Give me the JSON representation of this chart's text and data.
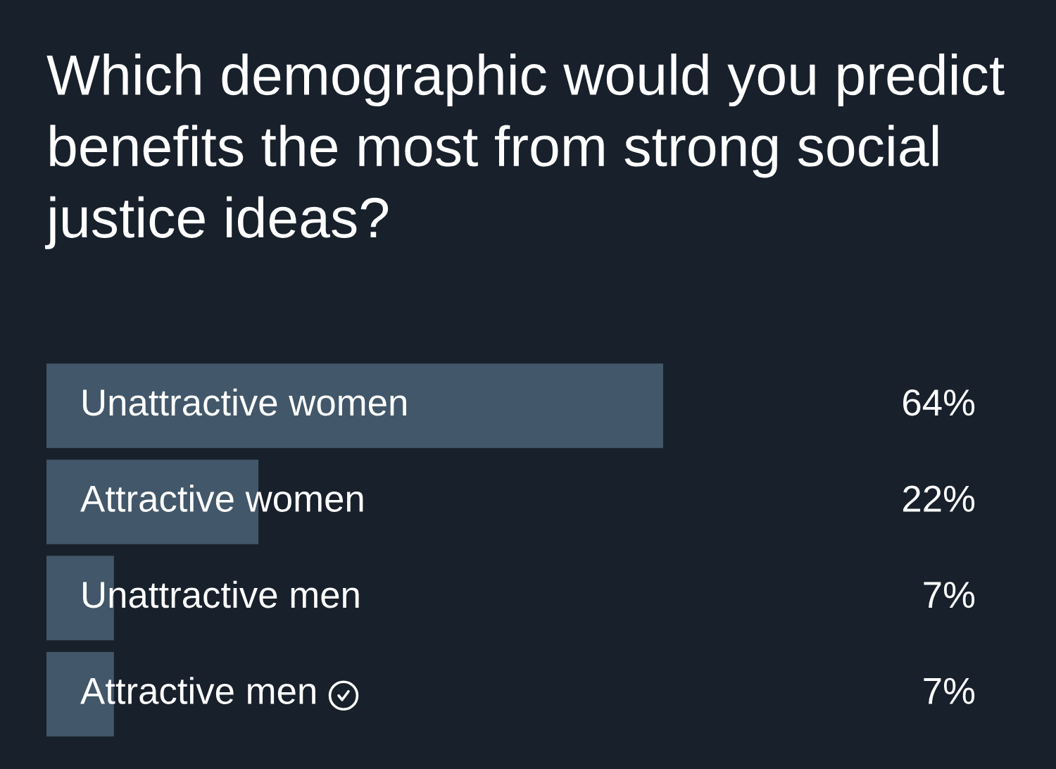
{
  "chart_data": {
    "type": "bar",
    "orientation": "horizontal",
    "title": "Which demographic would you predict benefits the most from strong social justice ideas?",
    "categories": [
      "Unattractive women",
      "Attractive women",
      "Unattractive men",
      "Attractive men"
    ],
    "values": [
      64,
      22,
      7,
      7
    ],
    "color": "#425769",
    "value_labels": [
      "64%",
      "22%",
      "7%",
      "7%"
    ]
  }
}
